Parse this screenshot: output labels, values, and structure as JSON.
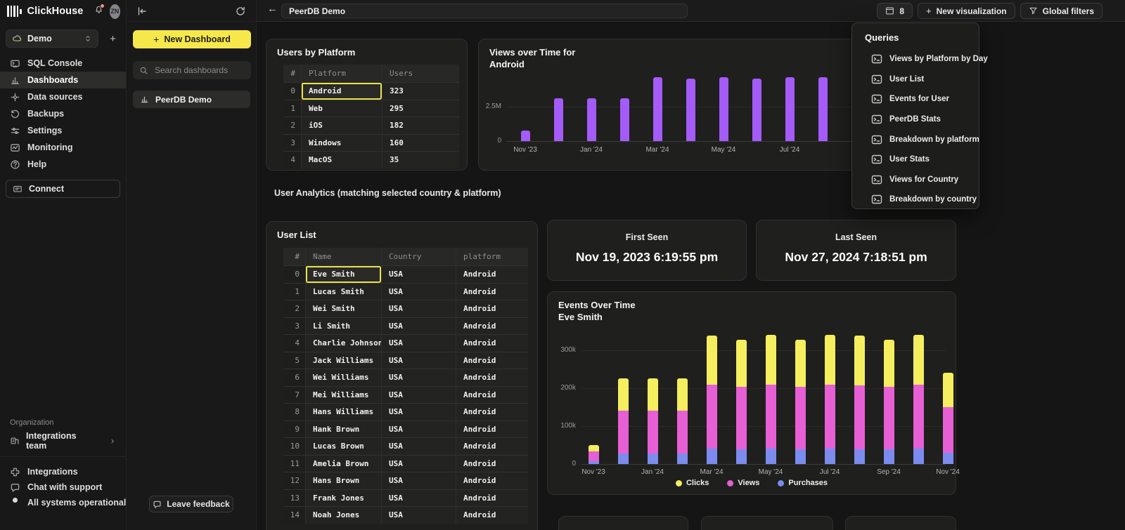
{
  "colors": {
    "accent_yellow": "#f6e84b",
    "selection_yellow": "#ece24e",
    "purple": "#a45bf7",
    "magenta": "#e75fd4",
    "blue": "#7b8cee",
    "chart_yellow": "#f5ee5e"
  },
  "app": {
    "brand": "ClickHouse",
    "avatar_initials": "ZN"
  },
  "sidebar": {
    "workspace": {
      "label": "Demo"
    },
    "items": [
      {
        "label": "SQL Console",
        "icon": "console"
      },
      {
        "label": "Dashboards",
        "icon": "dashboards",
        "active": true
      },
      {
        "label": "Data sources",
        "icon": "data-sources"
      },
      {
        "label": "Backups",
        "icon": "backups"
      },
      {
        "label": "Settings",
        "icon": "settings"
      },
      {
        "label": "Monitoring",
        "icon": "monitoring"
      },
      {
        "label": "Help",
        "icon": "help"
      }
    ],
    "connect_label": "Connect",
    "organization_label": "Organization",
    "team": {
      "label": "Integrations team"
    },
    "footer": [
      {
        "label": "Integrations",
        "icon": "integrations"
      },
      {
        "label": "Chat with support",
        "icon": "chat"
      },
      {
        "label": "All systems operational",
        "icon": "status-dot"
      }
    ]
  },
  "dashboards_panel": {
    "new_dashboard_label": "New Dashboard",
    "search_placeholder": "Search dashboards",
    "items": [
      {
        "label": "PeerDB Demo"
      }
    ],
    "leave_feedback_label": "Leave feedback"
  },
  "topbar": {
    "title": "PeerDB Demo",
    "viz_count": "8",
    "new_visualization_label": "New visualization",
    "global_filters_label": "Global filters"
  },
  "queries_menu": {
    "title": "Queries",
    "items": [
      "Views by Platform by Day",
      "User List",
      "Events for User",
      "PeerDB Stats",
      "Breakdown by platform",
      "User Stats",
      "Views for Country",
      "Breakdown by country"
    ]
  },
  "users_by_platform": {
    "title": "Users by Platform",
    "columns": [
      "#",
      "Platform",
      "Users"
    ],
    "rows": [
      [
        "Android",
        "323"
      ],
      [
        "Web",
        "295"
      ],
      [
        "iOS",
        "182"
      ],
      [
        "Windows",
        "160"
      ],
      [
        "MacOS",
        "35"
      ]
    ],
    "selected_cell": {
      "row": 0,
      "col": 1
    }
  },
  "section_note": "User Analytics (matching selected country & platform)",
  "user_list": {
    "title": "User List",
    "columns": [
      "#",
      "Name",
      "Country",
      "platform"
    ],
    "rows": [
      [
        "Eve Smith",
        "USA",
        "Android"
      ],
      [
        "Lucas Smith",
        "USA",
        "Android"
      ],
      [
        "Wei Smith",
        "USA",
        "Android"
      ],
      [
        "Li Smith",
        "USA",
        "Android"
      ],
      [
        "Charlie Johnson",
        "USA",
        "Android"
      ],
      [
        "Jack Williams",
        "USA",
        "Android"
      ],
      [
        "Wei Williams",
        "USA",
        "Android"
      ],
      [
        "Mei Williams",
        "USA",
        "Android"
      ],
      [
        "Hans Williams",
        "USA",
        "Android"
      ],
      [
        "Hank Brown",
        "USA",
        "Android"
      ],
      [
        "Lucas Brown",
        "USA",
        "Android"
      ],
      [
        "Amelia Brown",
        "USA",
        "Android"
      ],
      [
        "Hans Brown",
        "USA",
        "Android"
      ],
      [
        "Frank Jones",
        "USA",
        "Android"
      ],
      [
        "Noah Jones",
        "USA",
        "Android"
      ]
    ],
    "selected_cell": {
      "row": 0,
      "col": 1
    }
  },
  "first_seen": {
    "label": "First Seen",
    "value": "Nov 19, 2023 6:19:55 pm"
  },
  "last_seen": {
    "label": "Last Seen",
    "value": "Nov 27, 2024 7:18:51 pm"
  },
  "chart_data": [
    {
      "type": "bar",
      "title": "Views over Time for Android",
      "title_lines": [
        "Views over Time for",
        "Android"
      ],
      "unit": "M views",
      "bar_color": "#a45bf7",
      "categories": [
        "Nov '23",
        "Dec '23",
        "Jan '24",
        "Feb '24",
        "Mar '24",
        "Apr '24",
        "May '24",
        "Jun '24",
        "Jul '24",
        "Aug '24"
      ],
      "values": [
        0.75,
        3.1,
        3.1,
        3.1,
        4.65,
        4.55,
        4.65,
        4.55,
        4.65,
        4.65
      ],
      "ylim": [
        0,
        5
      ],
      "yticks": [
        {
          "v": 0,
          "label": "0"
        },
        {
          "v": 2.5,
          "label": "2.5M"
        }
      ],
      "xticks": [
        {
          "i": 0,
          "label": "Nov '23"
        },
        {
          "i": 2,
          "label": "Jan '24"
        },
        {
          "i": 4,
          "label": "Mar '24"
        },
        {
          "i": 6,
          "label": "May '24"
        },
        {
          "i": 8,
          "label": "Jul '24"
        }
      ],
      "grid": true,
      "legend_position": "none"
    },
    {
      "type": "bar-stacked",
      "title": "Events Over Time",
      "subtitle": "Eve Smith",
      "title_lines": [
        "Events Over Time",
        "Eve Smith"
      ],
      "unit": "k events",
      "categories": [
        "Nov '23",
        "Dec '23",
        "Jan '24",
        "Feb '24",
        "Mar '24",
        "Apr '24",
        "May '24",
        "Jun '24",
        "Jul '24",
        "Aug '24",
        "Sep '24",
        "Oct '24",
        "Nov '24"
      ],
      "series": [
        {
          "name": "Purchases",
          "color": "#7b8cee",
          "values": [
            8,
            28,
            27,
            28,
            40,
            38,
            41,
            38,
            41,
            39,
            38,
            40,
            30
          ]
        },
        {
          "name": "Views",
          "color": "#e75fd4",
          "values": [
            25,
            112,
            113,
            112,
            170,
            166,
            169,
            166,
            169,
            169,
            166,
            170,
            120
          ]
        },
        {
          "name": "Clicks",
          "color": "#f5ee5e",
          "values": [
            17,
            86,
            86,
            86,
            129,
            124,
            130,
            124,
            130,
            130,
            124,
            130,
            90
          ]
        }
      ],
      "legend": [
        {
          "label": "Clicks",
          "color": "#f5ee5e"
        },
        {
          "label": "Views",
          "color": "#e75fd4"
        },
        {
          "label": "Purchases",
          "color": "#7b8cee"
        }
      ],
      "ylim": [
        0,
        360
      ],
      "yticks": [
        {
          "v": 0,
          "label": "0"
        },
        {
          "v": 100,
          "label": "100k"
        },
        {
          "v": 200,
          "label": "200k"
        },
        {
          "v": 300,
          "label": "300k"
        }
      ],
      "xticks": [
        {
          "i": 0,
          "label": "Nov '23"
        },
        {
          "i": 2,
          "label": "Jan '24"
        },
        {
          "i": 4,
          "label": "Mar '24"
        },
        {
          "i": 6,
          "label": "May '24"
        },
        {
          "i": 8,
          "label": "Jul '24"
        },
        {
          "i": 10,
          "label": "Sep '24"
        },
        {
          "i": 12,
          "label": "Nov '24"
        }
      ],
      "grid": true,
      "legend_position": "bottom"
    }
  ]
}
